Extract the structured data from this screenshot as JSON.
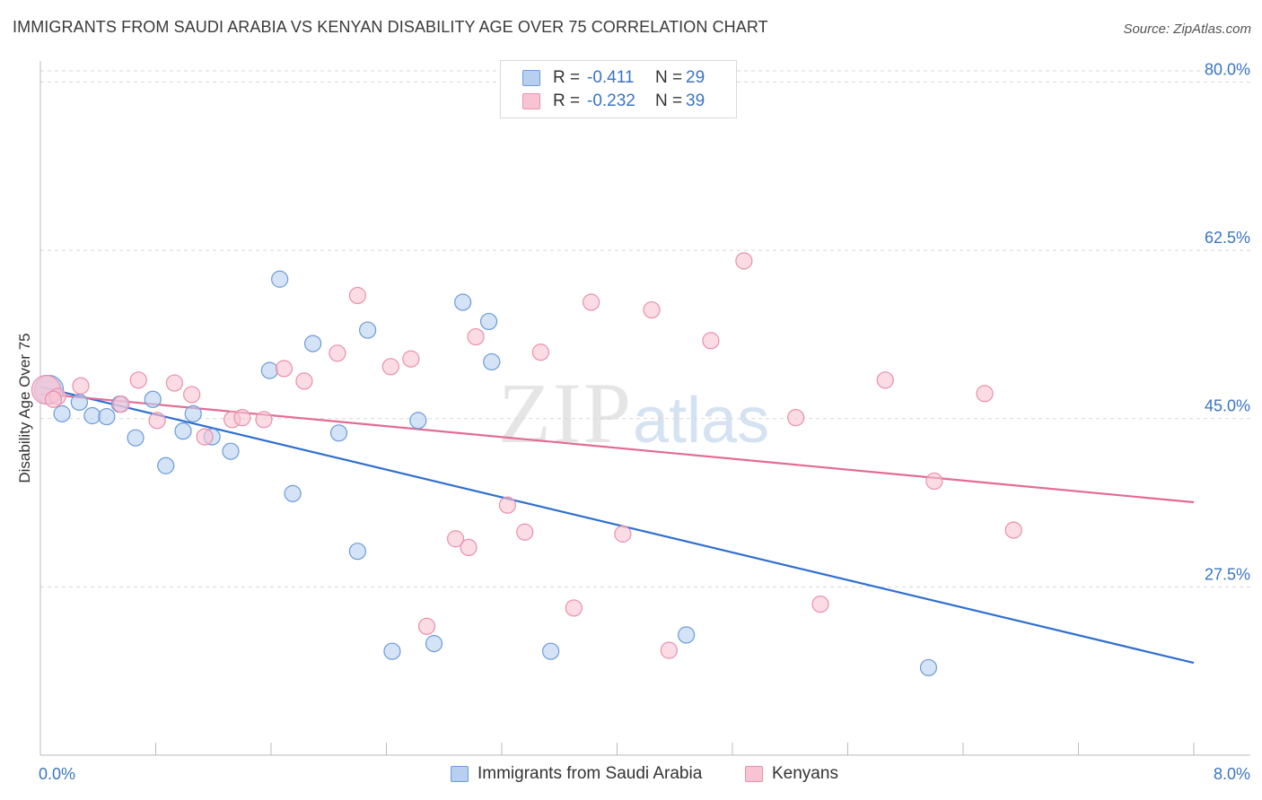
{
  "header": {
    "title": "IMMIGRANTS FROM SAUDI ARABIA VS KENYAN DISABILITY AGE OVER 75 CORRELATION CHART",
    "source": "Source: ZipAtlas.com"
  },
  "legend": {
    "rows": [
      {
        "r_label": "R =",
        "r_value": "-0.411",
        "n_label": "N =",
        "n_value": "29"
      },
      {
        "r_label": "R =",
        "r_value": "-0.232",
        "n_label": "N =",
        "n_value": "39"
      }
    ],
    "series_names": [
      "Immigrants from Saudi Arabia",
      "Kenyans"
    ]
  },
  "watermark": {
    "zip": "ZIP",
    "atlas": "atlas"
  },
  "colors": {
    "blue_fill": "#b8d0f0",
    "blue_stroke": "#6b9bd9",
    "blue_line": "#2f6fd1",
    "pink_fill": "#f8c4d3",
    "pink_stroke": "#ea8fac",
    "pink_line": "#e36b95",
    "grid": "#d8d8d8",
    "tick_label": "#3a74c4"
  },
  "chart_data": {
    "type": "scatter",
    "title": "IMMIGRANTS FROM SAUDI ARABIA VS KENYAN DISABILITY AGE OVER 75 CORRELATION CHART",
    "xlabel": "",
    "ylabel": "Disability Age Over 75",
    "xlim": [
      0,
      8
    ],
    "ylim": [
      10,
      82
    ],
    "x_tick_labels": [
      "0.0%",
      "8.0%"
    ],
    "y_ticks": [
      27.5,
      45.0,
      62.5,
      80.0
    ],
    "y_tick_labels": [
      "27.5%",
      "45.0%",
      "62.5%",
      "80.0%"
    ],
    "grid": "horizontal dashed",
    "series": [
      {
        "name": "Immigrants from Saudi Arabia",
        "color": "#6b9bd9",
        "points": [
          [
            0.06,
            48.0
          ],
          [
            0.15,
            45.5
          ],
          [
            0.27,
            46.7
          ],
          [
            0.36,
            45.3
          ],
          [
            0.46,
            45.2
          ],
          [
            0.55,
            46.5
          ],
          [
            0.66,
            43.0
          ],
          [
            0.78,
            47.0
          ],
          [
            0.87,
            40.1
          ],
          [
            0.99,
            43.7
          ],
          [
            1.06,
            45.5
          ],
          [
            1.19,
            43.1
          ],
          [
            1.32,
            41.6
          ],
          [
            1.59,
            50.0
          ],
          [
            1.66,
            59.5
          ],
          [
            1.75,
            37.2
          ],
          [
            1.89,
            52.8
          ],
          [
            2.07,
            43.5
          ],
          [
            2.2,
            31.2
          ],
          [
            2.27,
            54.2
          ],
          [
            2.44,
            20.8
          ],
          [
            2.62,
            44.8
          ],
          [
            2.73,
            21.6
          ],
          [
            2.93,
            57.1
          ],
          [
            3.11,
            55.1
          ],
          [
            3.13,
            50.9
          ],
          [
            3.54,
            20.8
          ],
          [
            4.48,
            22.5
          ],
          [
            6.16,
            19.1
          ]
        ],
        "trend": {
          "x": [
            0.0,
            8.0
          ],
          "y": [
            48.3,
            19.6
          ]
        }
      },
      {
        "name": "Kenyans",
        "color": "#ea8fac",
        "points": [
          [
            0.04,
            48.0
          ],
          [
            0.12,
            47.3
          ],
          [
            0.28,
            48.4
          ],
          [
            0.56,
            46.5
          ],
          [
            0.68,
            49.0
          ],
          [
            0.81,
            44.8
          ],
          [
            0.93,
            48.7
          ],
          [
            1.05,
            47.5
          ],
          [
            1.33,
            44.9
          ],
          [
            1.4,
            45.1
          ],
          [
            1.55,
            44.9
          ],
          [
            1.69,
            50.2
          ],
          [
            1.83,
            48.9
          ],
          [
            2.06,
            51.8
          ],
          [
            2.2,
            57.8
          ],
          [
            2.43,
            50.4
          ],
          [
            2.57,
            51.2
          ],
          [
            2.68,
            23.4
          ],
          [
            2.88,
            32.5
          ],
          [
            2.97,
            31.6
          ],
          [
            3.02,
            53.5
          ],
          [
            3.24,
            36.0
          ],
          [
            3.36,
            33.2
          ],
          [
            3.47,
            51.9
          ],
          [
            3.7,
            25.3
          ],
          [
            3.82,
            57.1
          ],
          [
            4.04,
            33.0
          ],
          [
            4.24,
            56.3
          ],
          [
            4.36,
            20.9
          ],
          [
            4.65,
            53.1
          ],
          [
            4.88,
            61.4
          ],
          [
            5.24,
            45.1
          ],
          [
            5.41,
            25.7
          ],
          [
            5.86,
            49.0
          ],
          [
            6.2,
            38.5
          ],
          [
            6.55,
            47.6
          ],
          [
            6.75,
            33.4
          ],
          [
            0.09,
            47.0
          ],
          [
            1.14,
            43.1
          ]
        ],
        "trend": {
          "x": [
            0.0,
            8.0
          ],
          "y": [
            47.6,
            36.3
          ]
        }
      }
    ]
  }
}
